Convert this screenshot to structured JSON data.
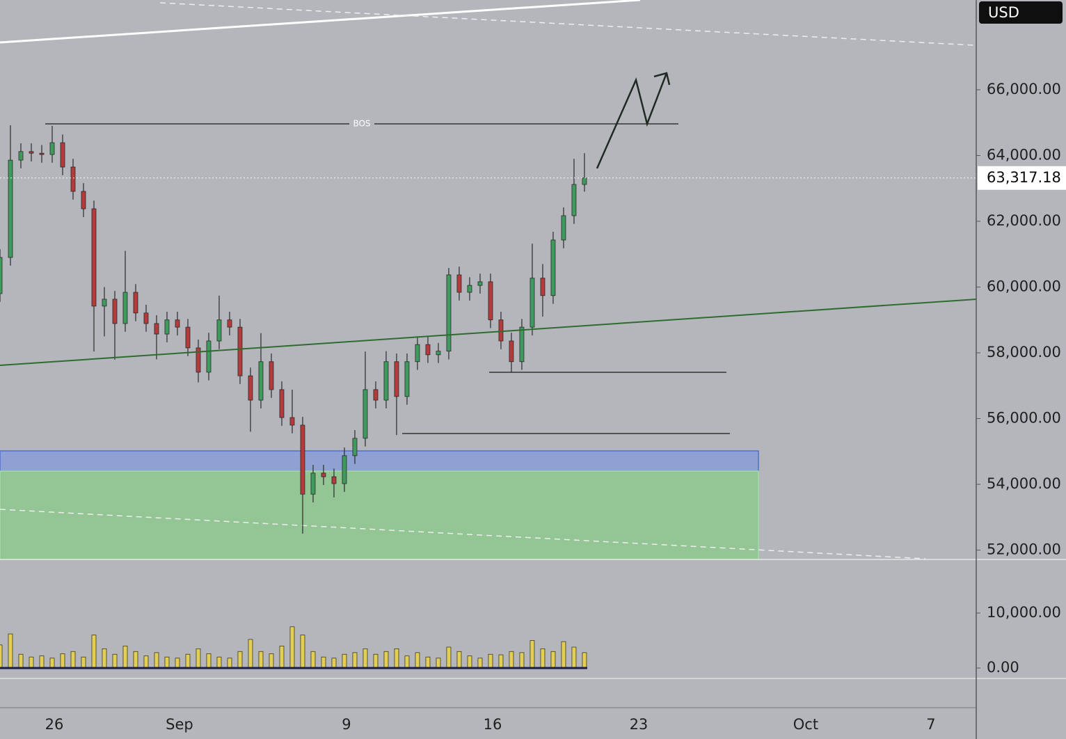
{
  "chart_data": [
    {
      "type": "candlestick",
      "currency": "USD",
      "annotation": "BOS",
      "up_color": "#3f9a5d",
      "down_color": "#b43a3c",
      "x": [
        -2.6,
        -2.1,
        -1.6,
        -1.1,
        -0.6,
        -0.1,
        0.4,
        0.9,
        1.4,
        1.9,
        2.4,
        2.9,
        3.4,
        3.9,
        4.4,
        4.9,
        5.4,
        5.9,
        6.4,
        6.9,
        7.4,
        7.9,
        8.4,
        8.9,
        9.4,
        9.9,
        10.4,
        10.9,
        11.4,
        11.9,
        12.4,
        12.9,
        13.4,
        13.9,
        14.4,
        14.9,
        15.4,
        15.9,
        16.4,
        16.9,
        17.4,
        17.9,
        18.4,
        18.9,
        19.4,
        19.9,
        20.4,
        20.9,
        21.4,
        21.9,
        22.4,
        22.9,
        23.4,
        23.9,
        24.4,
        24.9,
        25.4
      ],
      "open": [
        59800,
        60900,
        63860,
        64120,
        64070,
        64030,
        64390,
        63650,
        62910,
        62380,
        59420,
        59630,
        58890,
        59840,
        59210,
        58890,
        58570,
        59000,
        58780,
        58150,
        57410,
        58360,
        59000,
        58780,
        57300,
        56560,
        57730,
        56880,
        56030,
        55800,
        53700,
        54340,
        54230,
        54020,
        54870,
        55400,
        56880,
        56560,
        57730,
        56670,
        57730,
        58250,
        57940,
        58050,
        60370,
        59840,
        60050,
        60160,
        59000,
        58360,
        57730,
        58780,
        60270,
        59740,
        61430,
        62170,
        63120
      ],
      "high": [
        61150,
        64920,
        64370,
        64370,
        64320,
        64900,
        64640,
        63900,
        63160,
        62630,
        60000,
        59880,
        61100,
        60090,
        59460,
        59140,
        59250,
        59250,
        59030,
        58400,
        58610,
        59740,
        59250,
        59030,
        57550,
        58600,
        57980,
        57130,
        56880,
        56050,
        54590,
        54590,
        54480,
        55120,
        55650,
        58040,
        57130,
        58050,
        57980,
        57980,
        58500,
        58500,
        58300,
        60580,
        60620,
        60300,
        60410,
        60410,
        59250,
        58610,
        59030,
        61320,
        60700,
        61680,
        62420,
        63900,
        64070
      ],
      "low": [
        59550,
        60650,
        63610,
        63820,
        63780,
        63780,
        63400,
        62660,
        62130,
        58040,
        58500,
        57790,
        58640,
        58960,
        58640,
        57800,
        58320,
        58530,
        57900,
        57100,
        57160,
        58110,
        58530,
        57050,
        55600,
        56310,
        56630,
        55780,
        55550,
        52500,
        53450,
        53980,
        53600,
        53770,
        54620,
        55150,
        56310,
        56310,
        55500,
        56420,
        57480,
        57690,
        57690,
        57800,
        59590,
        59590,
        59800,
        58750,
        58110,
        57400,
        57480,
        58530,
        59100,
        59490,
        61180,
        61920,
        62900
      ],
      "close": [
        60900,
        63860,
        64120,
        64070,
        64030,
        64390,
        63650,
        62910,
        62380,
        59420,
        59630,
        58890,
        59840,
        59210,
        58890,
        58570,
        59000,
        58780,
        58150,
        57410,
        58360,
        59000,
        58780,
        57300,
        56560,
        57730,
        56880,
        56030,
        55800,
        53700,
        54340,
        54230,
        54020,
        54870,
        55400,
        56880,
        56560,
        57730,
        56670,
        57730,
        58250,
        57940,
        58050,
        60370,
        59840,
        60050,
        60160,
        59000,
        58360,
        57730,
        58780,
        60270,
        59740,
        61430,
        62170,
        63120,
        63317.18
      ],
      "last_price": {
        "value": 63317.18,
        "label": "63,317.18"
      },
      "xlim": [
        -2.6,
        44.17
      ],
      "xticks": [
        {
          "value": 0,
          "label": "26"
        },
        {
          "value": 6,
          "label": "Sep"
        },
        {
          "value": 14,
          "label": "9"
        },
        {
          "value": 21,
          "label": "16"
        },
        {
          "value": 28,
          "label": "23"
        },
        {
          "value": 36,
          "label": "Oct"
        },
        {
          "value": 42,
          "label": "7"
        }
      ],
      "ylim": [
        51714,
        68730
      ],
      "yticks": [
        {
          "value": 52000,
          "label": "52,000.00"
        },
        {
          "value": 54000,
          "label": "54,000.00"
        },
        {
          "value": 56000,
          "label": "56,000.00"
        },
        {
          "value": 58000,
          "label": "58,000.00"
        },
        {
          "value": 60000,
          "label": "60,000.00"
        },
        {
          "value": 62000,
          "label": "62,000.00"
        },
        {
          "value": 64000,
          "label": "64,000.00"
        },
        {
          "value": 66000,
          "label": "66,000.00"
        }
      ]
    },
    {
      "type": "bar",
      "color": "#e3cf55",
      "values": [
        4200,
        6200,
        2500,
        2000,
        2200,
        1800,
        2600,
        3000,
        2000,
        6000,
        3500,
        2500,
        4000,
        3000,
        2200,
        2800,
        2000,
        1800,
        2500,
        3500,
        2600,
        2000,
        1800,
        3000,
        5200,
        3000,
        2600,
        4000,
        7500,
        6000,
        3000,
        2000,
        1800,
        2500,
        2800,
        3500,
        2500,
        3000,
        3500,
        2200,
        2800,
        2000,
        1800,
        3800,
        3000,
        2200,
        1800,
        2500,
        2400,
        3000,
        2800,
        5000,
        3500,
        3000,
        4800,
        3800,
        2800
      ],
      "ylim": [
        -1900,
        19750
      ],
      "yticks": [
        {
          "value": 0,
          "label": "0.00"
        },
        {
          "value": 10000,
          "label": "10,000.00"
        }
      ]
    }
  ]
}
